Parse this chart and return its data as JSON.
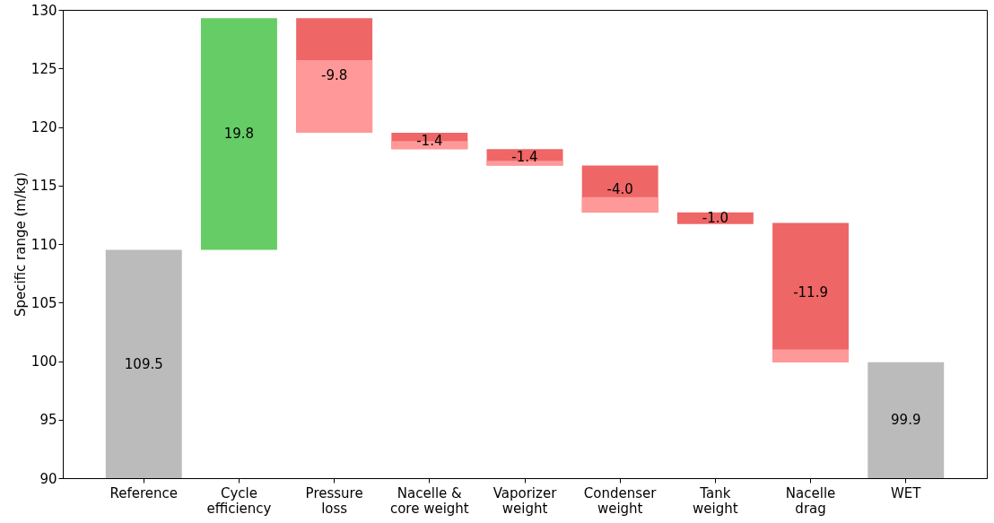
{
  "chart_data": {
    "type": "bar",
    "ylabel": "Specific range (m/kg)",
    "categories": [
      "Reference",
      "Cycle\nefficiency",
      "Pressure\nloss",
      "Nacelle &\ncore weight",
      "Vaporizer\nweight",
      "Condenser\nweight",
      "Tank\nweight",
      "Nacelle\ndrag",
      "WET"
    ],
    "series": [
      {
        "base": [
          90,
          109.5,
          129.3,
          119.5,
          118.1,
          116.7,
          112.7,
          111.8,
          90
        ],
        "colors": [
          "#bbbbbb",
          "#66cc66",
          "#ee6666",
          "#ee6666",
          "#ee6666",
          "#ee6666",
          "#ee6666",
          "#ee6666",
          "#bbbbbb"
        ],
        "values": [
          19.5,
          19.8,
          -9.8,
          -1.4,
          -1.4,
          -4.0,
          -1.0,
          -11.9,
          9.9
        ],
        "value_labels": [
          "109.5",
          "19.8",
          "-9.8",
          "-1.4",
          "-1.4",
          "-4.0",
          "-1.0",
          "-11.9",
          "99.9"
        ]
      },
      {
        "base": [
          null,
          null,
          119.5,
          118.1,
          116.7,
          112.7,
          null,
          99.9,
          null
        ],
        "colors": [
          null,
          null,
          "#ff9999",
          "#ff9999",
          "#ff9999",
          "#ff9999",
          null,
          "#ff9999",
          null
        ],
        "values": [
          null,
          null,
          6.2,
          0.7,
          0.4,
          1.3,
          null,
          1.1,
          null
        ]
      }
    ],
    "ylim": [
      90,
      130
    ],
    "yticks": [
      90,
      95,
      100,
      105,
      110,
      115,
      120,
      125,
      130
    ]
  }
}
